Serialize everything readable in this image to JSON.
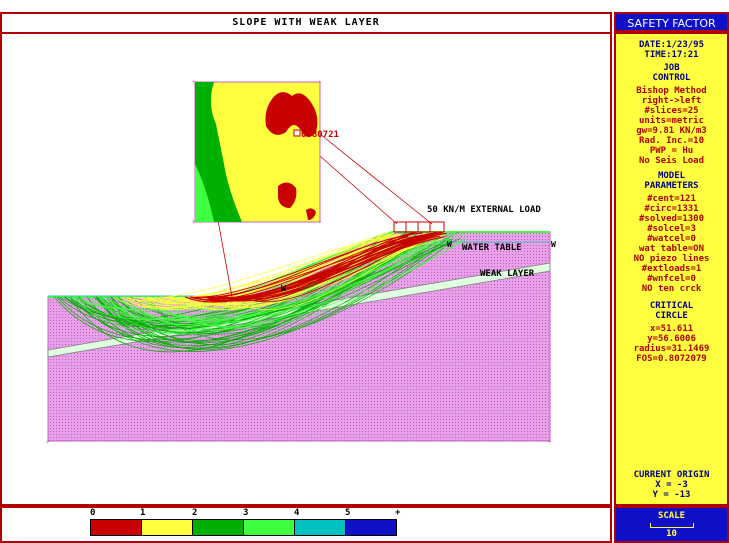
{
  "title": "SLOPE WITH WEAK LAYER",
  "panel_title": "SAFETY FACTOR",
  "date": "DATE:1/23/95",
  "time": "TIME:17:21",
  "job_control": {
    "heading": [
      "JOB",
      "CONTROL"
    ],
    "lines": [
      "Bishop Method",
      "right->left",
      "#slices=25",
      "units=metric",
      "gw=9.81 KN/m3",
      "Rad. Inc.=10",
      "PWP = Hu",
      "No Seis Load"
    ]
  },
  "model_parameters": {
    "heading": [
      "MODEL",
      "PARAMETERS"
    ],
    "lines": [
      "#cent=121",
      "#circ=1331",
      "#solved=1300",
      "#solcel=3",
      "#watcel=0",
      "wat table=ON",
      "NO piezo lines",
      "#extloads=1",
      "#wnfcel=0",
      "NO ten crck"
    ]
  },
  "critical_circle": {
    "heading": [
      "CRITICAL",
      "CIRCLE"
    ],
    "lines": [
      "x=51.611",
      "y=56.6006",
      "radius=31.1469",
      "FOS=0.8072079"
    ]
  },
  "current_origin": {
    "heading": "CURRENT ORIGIN",
    "x": "X  = -3",
    "y": "Y  = -13"
  },
  "scale": {
    "label": "SCALE",
    "value": "10"
  },
  "annotations": {
    "external_load": "50 KN/M EXTERNAL LOAD",
    "water_table": "WATER TABLE",
    "weak_layer": "WEAK LAYER",
    "fos_marker": "0.80721",
    "w_marker": "W"
  },
  "legend": {
    "labels": [
      "0",
      "1",
      "2",
      "3",
      "4",
      "5",
      "+"
    ],
    "colors": [
      "#c80000",
      "#ffff40",
      "#00b000",
      "#40ff40",
      "#00c0c0",
      "#1010c8"
    ]
  },
  "colors": {
    "soil": "#e8a0e8",
    "weak_layer": "#e0ffe0",
    "frame": "#b00000",
    "panel_bg": "#ffff40",
    "panel_header": "#1010c8"
  }
}
